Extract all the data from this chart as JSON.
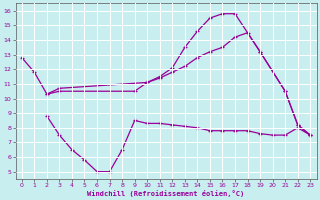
{
  "xlabel": "Windchill (Refroidissement éolien,°C)",
  "bg_color": "#c8eef0",
  "line_color": "#990099",
  "grid_color": "#ffffff",
  "x_ticks": [
    0,
    1,
    2,
    3,
    4,
    5,
    6,
    7,
    8,
    9,
    10,
    11,
    12,
    13,
    14,
    15,
    16,
    17,
    18,
    19,
    20,
    21,
    22,
    23
  ],
  "y_ticks": [
    5,
    6,
    7,
    8,
    9,
    10,
    11,
    12,
    13,
    14,
    15,
    16
  ],
  "ylim": [
    4.5,
    16.5
  ],
  "xlim": [
    -0.5,
    23.5
  ],
  "curve1_x": [
    0,
    1,
    2,
    3,
    9,
    10,
    11,
    12,
    13,
    14,
    15,
    16,
    17,
    19,
    21,
    22,
    23
  ],
  "curve1_y": [
    12.8,
    11.8,
    10.3,
    10.5,
    10.5,
    11.1,
    11.5,
    12.1,
    13.5,
    14.6,
    15.5,
    15.8,
    15.8,
    13.2,
    10.5,
    8.2,
    7.5
  ],
  "curve2_x": [
    2,
    3,
    10,
    11,
    12,
    13,
    14,
    15,
    16,
    17,
    18,
    19,
    21,
    22,
    23
  ],
  "curve2_y": [
    10.3,
    10.7,
    11.1,
    11.4,
    11.8,
    12.2,
    12.8,
    13.2,
    13.5,
    14.2,
    14.5,
    13.2,
    10.5,
    8.2,
    7.5
  ],
  "curve3_x": [
    2,
    3,
    4,
    5,
    6,
    7,
    8,
    9,
    10,
    11,
    12,
    13,
    14,
    15,
    16,
    17,
    18,
    19,
    20,
    21,
    22,
    23
  ],
  "curve3_y": [
    8.8,
    7.5,
    6.5,
    5.8,
    5.0,
    5.0,
    6.5,
    8.5,
    8.3,
    8.3,
    8.2,
    8.1,
    8.0,
    7.8,
    7.8,
    7.8,
    7.8,
    7.6,
    7.5,
    7.5,
    8.0,
    7.5
  ]
}
